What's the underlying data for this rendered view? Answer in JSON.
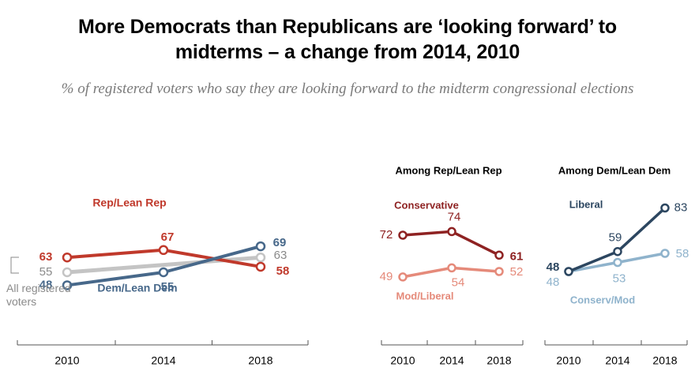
{
  "title": "More Democrats than Republicans are ‘looking forward’ to\nmidterms – a change from 2014, 2010",
  "subtitle": "% of registered voters who say they are looking forward to the midterm congressional elections",
  "colors": {
    "rep": "#c0392b",
    "dem": "#47688a",
    "all": "#c4c4c4",
    "conservative": "#8e2222",
    "mod_liberal": "#e58a7a",
    "liberal": "#2c4660",
    "conserv_mod": "#8fb3cc",
    "axis": "#555555",
    "tick_text": "#000000",
    "all_label": "#8a8a8a"
  },
  "chart_data": [
    {
      "type": "line",
      "x": [
        "2010",
        "2014",
        "2018"
      ],
      "ylim": [
        40,
        80
      ],
      "series": [
        {
          "name": "Rep/Lean Rep",
          "values": [
            63,
            67,
            58
          ]
        },
        {
          "name": "All registered voters",
          "values": [
            55,
            null,
            63
          ]
        },
        {
          "name": "Dem/Lean Dem",
          "values": [
            48,
            55,
            69
          ]
        }
      ],
      "all_series_midpoint_note": "line connects 55 to 63 without a labeled 2014 value"
    },
    {
      "type": "line",
      "title": "Among Rep/Lean Rep",
      "x": [
        "2010",
        "2014",
        "2018"
      ],
      "ylim": [
        40,
        80
      ],
      "series": [
        {
          "name": "Conservative",
          "values": [
            72,
            74,
            61
          ]
        },
        {
          "name": "Mod/Liberal",
          "values": [
            49,
            54,
            52
          ]
        }
      ]
    },
    {
      "type": "line",
      "title": "Among Dem/Lean Dem",
      "x": [
        "2010",
        "2014",
        "2018"
      ],
      "ylim": [
        40,
        90
      ],
      "series": [
        {
          "name": "Liberal",
          "values": [
            48,
            59,
            83
          ]
        },
        {
          "name": "Conserv/Mod",
          "values": [
            48,
            53,
            58
          ]
        }
      ]
    }
  ],
  "labels": {
    "all_registered": "All registered\nvoters"
  }
}
